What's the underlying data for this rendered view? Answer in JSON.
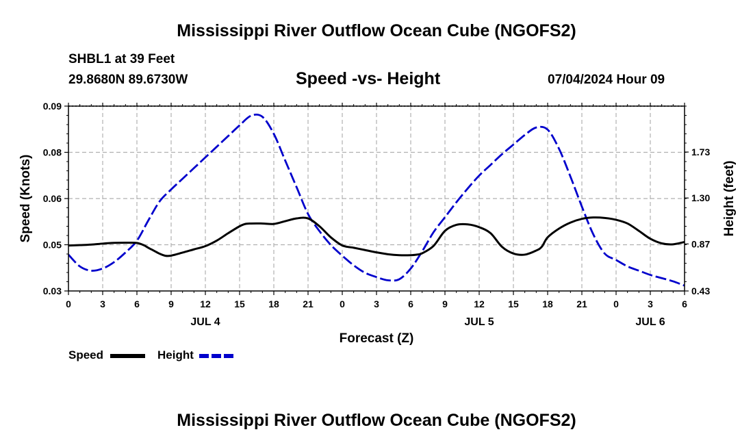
{
  "header": {
    "title": "Mississippi River Outflow Ocean Cube (NGOFS2)",
    "station": "SHBL1 at 39 Feet",
    "coords": "29.8680N  89.6730W",
    "date": "07/04/2024 Hour 09"
  },
  "footer": {
    "title": "Mississippi River Outflow Ocean Cube (NGOFS2)"
  },
  "colors": {
    "speed": "#000000",
    "height": "#0000cc",
    "grid": "#b0b0b0"
  },
  "chart_data": {
    "type": "line",
    "title": "Speed -vs- Height",
    "xlabel": "Forecast (Z)",
    "ylabel_left": "Speed (Knots)",
    "ylabel_right": "Height (feet)",
    "x_range": [
      0,
      54
    ],
    "x_ticks": [
      0,
      3,
      6,
      9,
      12,
      15,
      18,
      21,
      24,
      27,
      30,
      33,
      36,
      39,
      42,
      45,
      48,
      51,
      54
    ],
    "x_tick_labels": [
      "0",
      "3",
      "6",
      "9",
      "12",
      "15",
      "18",
      "21",
      "0",
      "3",
      "6",
      "9",
      "12",
      "15",
      "18",
      "21",
      "0",
      "3",
      "6"
    ],
    "day_labels": [
      {
        "hour": 12,
        "label": "JUL 4"
      },
      {
        "hour": 36,
        "label": "JUL 5"
      },
      {
        "hour": 51,
        "label": "JUL 6"
      }
    ],
    "y_left_ticks": [
      0.03,
      0.05,
      0.06,
      0.08,
      0.09
    ],
    "y_left_tick_labels": [
      "0.03",
      "0.05",
      "0.06",
      "0.08",
      "0.09"
    ],
    "y_right_ticks": [
      0.43,
      0.87,
      1.3,
      1.73
    ],
    "y_right_tick_labels": [
      "0.43",
      "0.87",
      "1.30",
      "1.73"
    ],
    "y_right_range": [
      0.43,
      2.16
    ],
    "series": [
      {
        "name": "Speed",
        "axis": "left",
        "style": "solid",
        "legend": "Speed",
        "x": [
          0,
          1,
          2,
          3,
          4,
          5,
          6,
          6.6,
          7,
          7.5,
          8,
          8.5,
          9,
          10,
          11,
          12,
          13,
          14,
          15,
          15.5,
          16,
          17,
          18,
          19,
          20,
          21,
          22,
          23,
          24,
          25,
          26,
          27,
          28,
          29,
          30,
          30.5,
          31,
          32,
          33,
          34,
          35,
          36,
          37,
          38,
          39,
          40,
          41,
          41.5,
          42,
          43,
          44,
          45,
          46,
          47,
          48,
          49,
          50,
          51,
          52,
          53,
          54
        ],
        "y": [
          0.04967,
          0.04985,
          0.05003,
          0.05025,
          0.0504,
          0.05044,
          0.0504,
          0.0498,
          0.0487,
          0.0474,
          0.0461,
          0.04522,
          0.0453,
          0.0466,
          0.048,
          0.0494,
          0.0509,
          0.0525,
          0.054,
          0.0545,
          0.0546,
          0.0546,
          0.0545,
          0.0551,
          0.0557,
          0.0557,
          0.054,
          0.0516,
          0.0497,
          0.0487,
          0.0477,
          0.0467,
          0.0459,
          0.0455,
          0.0455,
          0.0457,
          0.0463,
          0.0495,
          0.053,
          0.0543,
          0.0544,
          0.0538,
          0.0525,
          0.0491,
          0.0462,
          0.04572,
          0.0475,
          0.0492,
          0.0516,
          0.0535,
          0.0548,
          0.0556,
          0.0559,
          0.0558,
          0.0554,
          0.0546,
          0.053,
          0.0513,
          0.0503,
          0.0501,
          0.0506
        ]
      },
      {
        "name": "Height",
        "axis": "right",
        "style": "dashed",
        "legend": "Height",
        "x": [
          0,
          1,
          2,
          3,
          4,
          5,
          6,
          7,
          8,
          9,
          10,
          11,
          12,
          13,
          14,
          15,
          16,
          17,
          18,
          19,
          20,
          21,
          22,
          23,
          24,
          25,
          26,
          27,
          28,
          29,
          30,
          31,
          32,
          33,
          34,
          35,
          36,
          37,
          38,
          39,
          40,
          41,
          42,
          43,
          44,
          45,
          46,
          47,
          48,
          49,
          50,
          51,
          52,
          53,
          54
        ],
        "y": [
          0.77,
          0.66,
          0.62,
          0.64,
          0.7,
          0.79,
          0.9,
          1.09,
          1.27,
          1.38,
          1.48,
          1.58,
          1.68,
          1.78,
          1.88,
          1.98,
          2.07,
          2.06,
          1.9,
          1.65,
          1.4,
          1.15,
          0.99,
          0.86,
          0.76,
          0.67,
          0.6,
          0.56,
          0.53,
          0.54,
          0.64,
          0.8,
          0.98,
          1.12,
          1.26,
          1.39,
          1.51,
          1.61,
          1.71,
          1.8,
          1.89,
          1.96,
          1.94,
          1.76,
          1.5,
          1.22,
          0.96,
          0.78,
          0.72,
          0.66,
          0.62,
          0.58,
          0.55,
          0.52,
          0.48
        ]
      }
    ]
  }
}
